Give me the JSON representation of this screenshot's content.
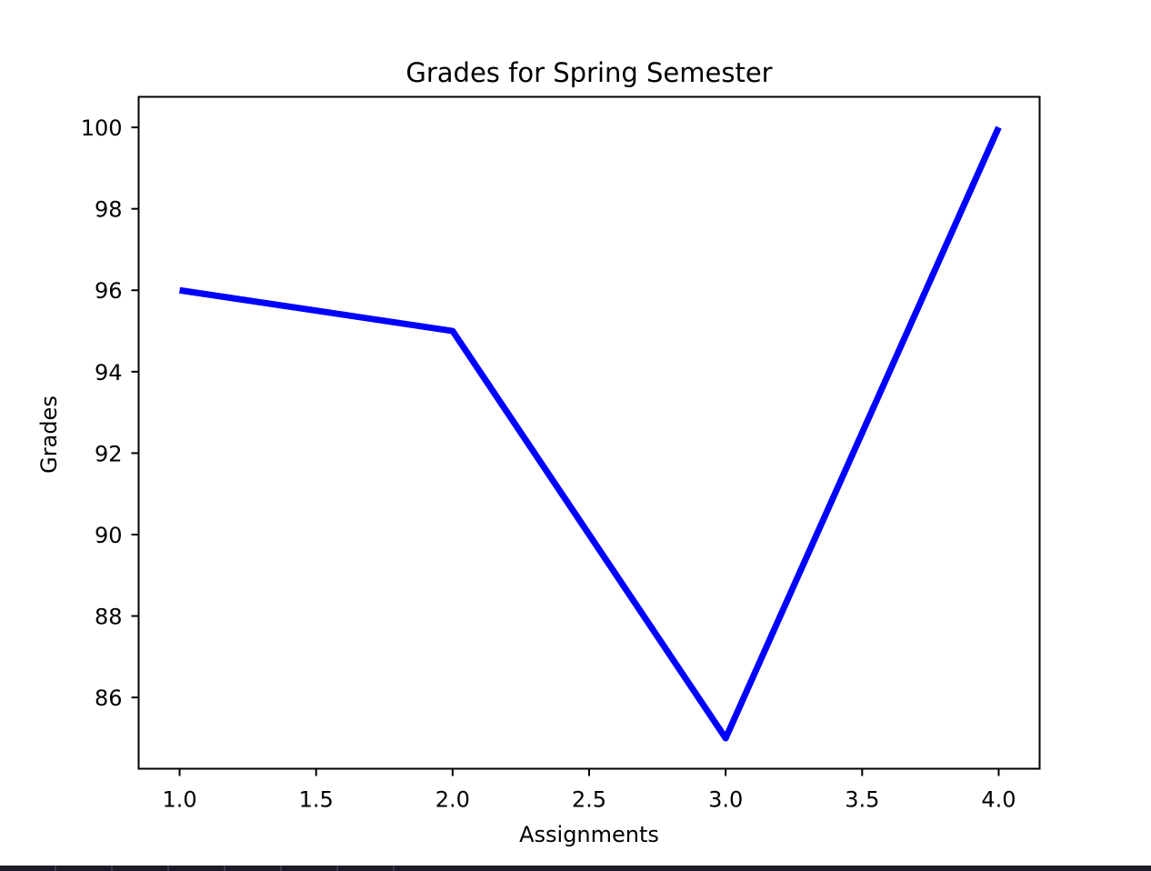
{
  "chart_data": {
    "type": "line",
    "title": "Grades for Spring Semester",
    "xlabel": "Assignments",
    "ylabel": "Grades",
    "x": [
      1.0,
      2.0,
      3.0,
      4.0
    ],
    "series": [
      {
        "values": [
          96,
          95,
          85,
          100
        ],
        "color": "#0000ff"
      }
    ],
    "xlim": [
      0.85,
      4.15
    ],
    "ylim": [
      84.25,
      100.75
    ],
    "xticks": [
      1.0,
      1.5,
      2.0,
      2.5,
      3.0,
      3.5,
      4.0
    ],
    "xtick_labels": [
      "1.0",
      "1.5",
      "2.0",
      "2.5",
      "3.0",
      "3.5",
      "4.0"
    ],
    "yticks": [
      86,
      88,
      90,
      92,
      94,
      96,
      98,
      100
    ],
    "ytick_labels": [
      "86",
      "88",
      "90",
      "92",
      "94",
      "96",
      "98",
      "100"
    ],
    "grid": false,
    "legend": false
  }
}
